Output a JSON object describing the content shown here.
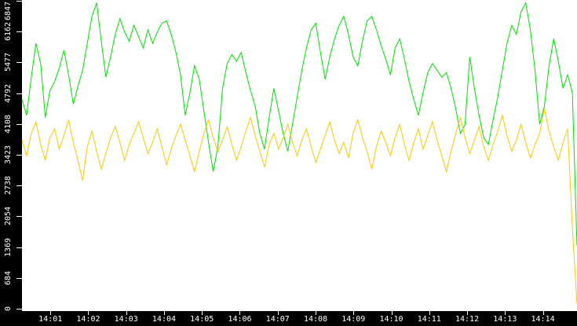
{
  "chart_data": {
    "type": "line",
    "title": "",
    "xlabel": "",
    "ylabel": "",
    "background_color": "#ffffff",
    "axis_strip_color": "#000000",
    "axis_text_color": "#ffffff",
    "grid": false,
    "legend": false,
    "x_axis": {
      "unit": "time",
      "start_minute": 0.25,
      "end_minute": 14.9,
      "tick_minutes": [
        1,
        2,
        3,
        4,
        5,
        6,
        7,
        8,
        9,
        10,
        11,
        12,
        13,
        14
      ],
      "tick_labels": [
        "14:01",
        "14:02",
        "14:03",
        "14:04",
        "14:05",
        "14:06",
        "14:07",
        "14:08",
        "14:09",
        "14:10",
        "14:11",
        "14:12",
        "14:13",
        "14:14"
      ]
    },
    "y_axis": {
      "range": [
        0,
        6847
      ],
      "tick_values": [
        0,
        684,
        1369,
        2054,
        2738,
        3423,
        4108,
        4792,
        5477,
        6162,
        6847
      ],
      "tick_labels": [
        "0",
        "684",
        "1369",
        "2054",
        "2738",
        "3423",
        "4108",
        "4792",
        "5477",
        "6162",
        "6847"
      ]
    },
    "series": [
      {
        "name": "series-green",
        "color": "#00e000",
        "values": [
          4650,
          4300,
          5150,
          5900,
          5450,
          4250,
          4850,
          5050,
          5350,
          5750,
          5200,
          4550,
          4950,
          5300,
          5900,
          6500,
          6800,
          5950,
          5150,
          5600,
          6100,
          6450,
          6150,
          5950,
          6300,
          6050,
          5800,
          6200,
          5900,
          6150,
          6350,
          6400,
          6100,
          5700,
          5200,
          4300,
          4800,
          5400,
          5100,
          4400,
          3700,
          3050,
          3600,
          4900,
          5450,
          5650,
          5500,
          5700,
          5250,
          4850,
          4500,
          3900,
          3550,
          4250,
          4900,
          4400,
          3900,
          3500,
          4100,
          4700,
          5300,
          5800,
          6200,
          6350,
          5700,
          5100,
          5600,
          6000,
          6300,
          6500,
          6100,
          5600,
          5400,
          5950,
          6400,
          6500,
          6200,
          5850,
          5550,
          5200,
          5800,
          6000,
          5550,
          5050,
          4650,
          4300,
          4800,
          5250,
          5450,
          5300,
          5150,
          5250,
          4900,
          4450,
          3900,
          4100,
          5600,
          4900,
          4300,
          3800,
          3650,
          4200,
          4700,
          5300,
          5900,
          6300,
          6100,
          6600,
          6800,
          6200,
          5300,
          4100,
          4500,
          5400,
          6000,
          5500,
          4900,
          5200,
          4800,
          1400
        ]
      },
      {
        "name": "series-gold",
        "color": "#ffc800",
        "values": [
          3750,
          3400,
          3900,
          4150,
          3650,
          3300,
          3800,
          4000,
          3550,
          3850,
          4200,
          3700,
          3300,
          2850,
          3600,
          3950,
          3500,
          3100,
          3450,
          3800,
          4050,
          3700,
          3300,
          3650,
          3900,
          4150,
          3800,
          3450,
          3700,
          4000,
          3600,
          3200,
          3550,
          3850,
          4100,
          3750,
          3400,
          3050,
          3500,
          3900,
          4200,
          3800,
          3500,
          3750,
          4050,
          3650,
          3300,
          3600,
          3950,
          4250,
          3850,
          3500,
          3150,
          3650,
          3900,
          3550,
          3800,
          4100,
          3700,
          3400,
          3750,
          4000,
          3600,
          3250,
          3550,
          3850,
          4150,
          3750,
          3450,
          3700,
          3350,
          3900,
          4200,
          3800,
          3500,
          3100,
          3600,
          3950,
          3700,
          3400,
          3800,
          4100,
          3650,
          3300,
          3700,
          4000,
          3550,
          3850,
          4150,
          3750,
          3400,
          3050,
          3500,
          3900,
          4250,
          3800,
          3450,
          3750,
          4050,
          3600,
          3300,
          3650,
          3950,
          4300,
          3850,
          3500,
          3750,
          4100,
          3700,
          3350,
          3650,
          3900,
          4450,
          3950,
          3600,
          3300,
          3700,
          4000,
          1800,
          100
        ]
      }
    ]
  }
}
